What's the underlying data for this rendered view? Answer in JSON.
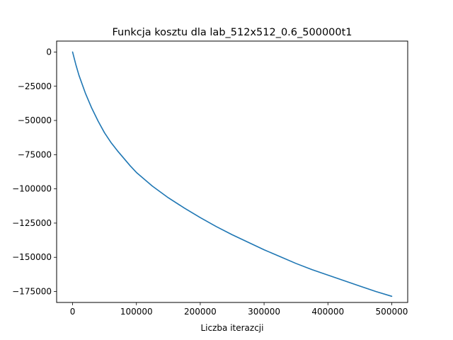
{
  "chart_data": {
    "type": "line",
    "title": "Funkcja kosztu dla lab_512x512_0.6_500000t1",
    "xlabel": "Liczba iterazcji",
    "ylabel": "",
    "xlim": [
      -25000,
      525000
    ],
    "ylim": [
      -183000,
      8000
    ],
    "x_ticks": [
      0,
      100000,
      200000,
      300000,
      400000,
      500000
    ],
    "x_tick_labels": [
      "0",
      "100000",
      "200000",
      "300000",
      "400000",
      "500000"
    ],
    "y_ticks": [
      0,
      -25000,
      -50000,
      -75000,
      -100000,
      -125000,
      -150000,
      -175000
    ],
    "y_tick_labels": [
      "0",
      "−25000",
      "−50000",
      "−75000",
      "−100000",
      "−125000",
      "−150000",
      "−175000"
    ],
    "grid": false,
    "series": [
      {
        "color": "#1f77b4",
        "x": [
          0,
          5000,
          10000,
          20000,
          30000,
          40000,
          50000,
          60000,
          70000,
          80000,
          90000,
          100000,
          125000,
          150000,
          175000,
          200000,
          225000,
          250000,
          275000,
          300000,
          325000,
          350000,
          375000,
          400000,
          425000,
          450000,
          475000,
          500000
        ],
        "y": [
          0,
          -9000,
          -17000,
          -30000,
          -41000,
          -50500,
          -59000,
          -66000,
          -72000,
          -77500,
          -83000,
          -88000,
          -98000,
          -106500,
          -114000,
          -121000,
          -127500,
          -133500,
          -139000,
          -144500,
          -149500,
          -154500,
          -159000,
          -163000,
          -167000,
          -171000,
          -175000,
          -178500
        ]
      }
    ]
  }
}
